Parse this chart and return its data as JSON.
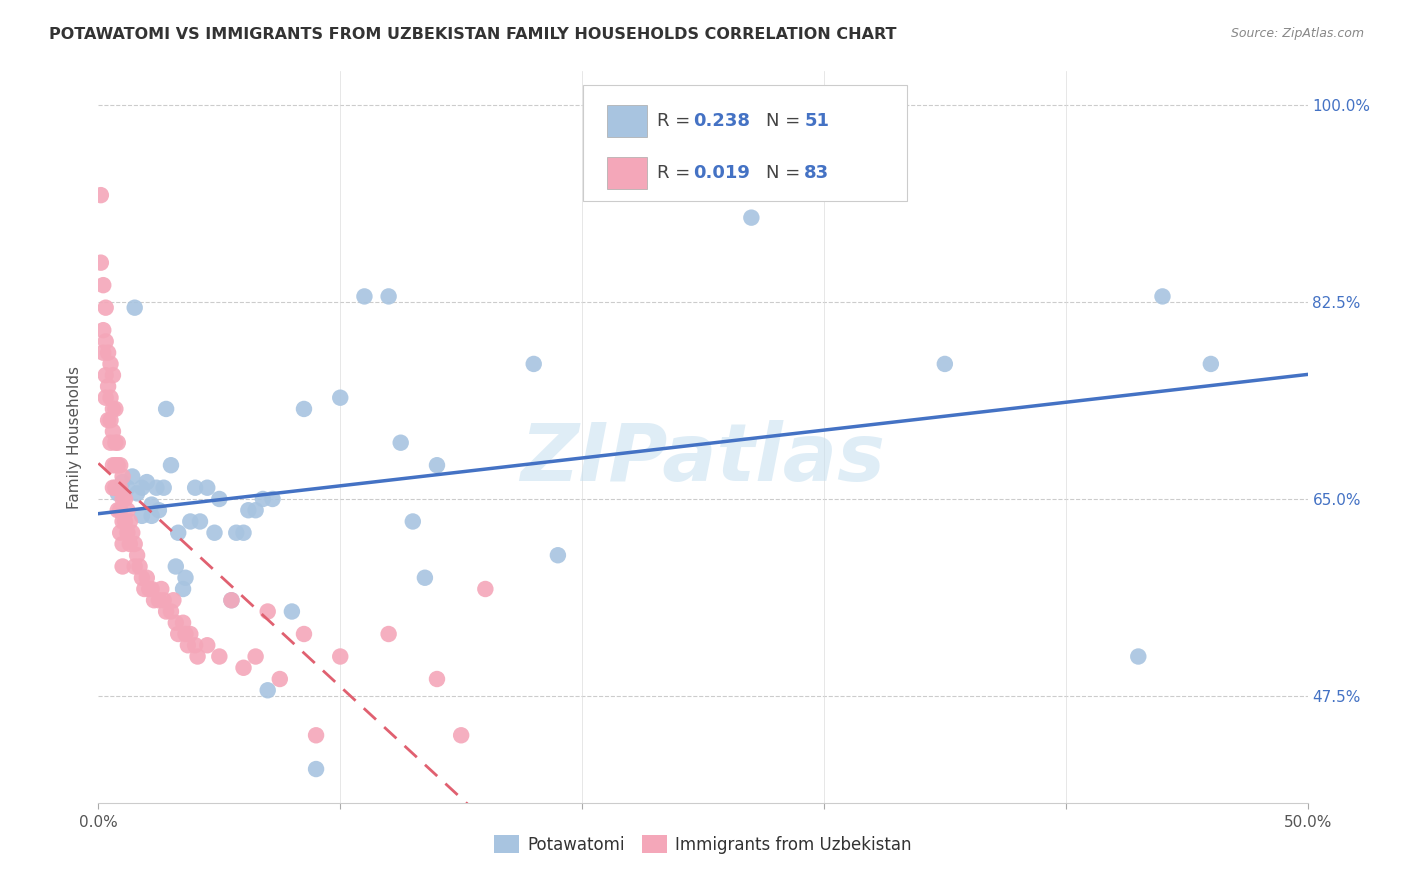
{
  "title": "POTAWATOMI VS IMMIGRANTS FROM UZBEKISTAN FAMILY HOUSEHOLDS CORRELATION CHART",
  "source": "Source: ZipAtlas.com",
  "ylabel": "Family Households",
  "xmin": 0.0,
  "xmax": 0.5,
  "ymin": 0.38,
  "ymax": 1.03,
  "ytick_vals": [
    0.475,
    0.65,
    0.825,
    1.0
  ],
  "ytick_labels": [
    "47.5%",
    "65.0%",
    "82.5%",
    "100.0%"
  ],
  "xtick_positions": [
    0.0,
    0.1,
    0.2,
    0.3,
    0.4,
    0.5
  ],
  "xtick_labels": [
    "0.0%",
    "",
    "",
    "",
    "",
    "50.0%"
  ],
  "color_blue": "#a8c4e0",
  "color_pink": "#f4a7b9",
  "color_blue_line": "#4472c4",
  "color_pink_line": "#e06070",
  "legend_R1": "0.238",
  "legend_N1": "51",
  "legend_R2": "0.019",
  "legend_N2": "83",
  "watermark": "ZIPatlas",
  "blue_x": [
    0.008,
    0.01,
    0.012,
    0.014,
    0.015,
    0.016,
    0.018,
    0.018,
    0.02,
    0.022,
    0.022,
    0.024,
    0.025,
    0.027,
    0.028,
    0.03,
    0.032,
    0.033,
    0.035,
    0.036,
    0.038,
    0.04,
    0.042,
    0.045,
    0.048,
    0.05,
    0.055,
    0.057,
    0.06,
    0.062,
    0.065,
    0.068,
    0.07,
    0.072,
    0.08,
    0.085,
    0.09,
    0.1,
    0.11,
    0.12,
    0.125,
    0.13,
    0.135,
    0.14,
    0.18,
    0.19,
    0.27,
    0.35,
    0.43,
    0.44,
    0.46
  ],
  "blue_y": [
    0.655,
    0.665,
    0.66,
    0.67,
    0.82,
    0.655,
    0.635,
    0.66,
    0.665,
    0.635,
    0.645,
    0.66,
    0.64,
    0.66,
    0.73,
    0.68,
    0.59,
    0.62,
    0.57,
    0.58,
    0.63,
    0.66,
    0.63,
    0.66,
    0.62,
    0.65,
    0.56,
    0.62,
    0.62,
    0.64,
    0.64,
    0.65,
    0.48,
    0.65,
    0.55,
    0.73,
    0.41,
    0.74,
    0.83,
    0.83,
    0.7,
    0.63,
    0.58,
    0.68,
    0.77,
    0.6,
    0.9,
    0.77,
    0.51,
    0.83,
    0.77
  ],
  "pink_x": [
    0.001,
    0.001,
    0.002,
    0.002,
    0.002,
    0.003,
    0.003,
    0.003,
    0.003,
    0.004,
    0.004,
    0.004,
    0.005,
    0.005,
    0.005,
    0.005,
    0.006,
    0.006,
    0.006,
    0.006,
    0.006,
    0.007,
    0.007,
    0.007,
    0.007,
    0.008,
    0.008,
    0.008,
    0.008,
    0.009,
    0.009,
    0.009,
    0.009,
    0.01,
    0.01,
    0.01,
    0.01,
    0.01,
    0.011,
    0.011,
    0.012,
    0.012,
    0.013,
    0.013,
    0.014,
    0.015,
    0.015,
    0.016,
    0.017,
    0.018,
    0.019,
    0.02,
    0.021,
    0.022,
    0.023,
    0.025,
    0.026,
    0.027,
    0.028,
    0.03,
    0.031,
    0.032,
    0.033,
    0.035,
    0.036,
    0.037,
    0.038,
    0.04,
    0.041,
    0.045,
    0.05,
    0.055,
    0.06,
    0.065,
    0.07,
    0.075,
    0.085,
    0.09,
    0.1,
    0.12,
    0.14,
    0.15,
    0.16
  ],
  "pink_y": [
    0.92,
    0.86,
    0.84,
    0.8,
    0.78,
    0.82,
    0.79,
    0.76,
    0.74,
    0.78,
    0.75,
    0.72,
    0.77,
    0.74,
    0.72,
    0.7,
    0.76,
    0.73,
    0.71,
    0.68,
    0.66,
    0.73,
    0.7,
    0.68,
    0.66,
    0.7,
    0.68,
    0.66,
    0.64,
    0.68,
    0.66,
    0.64,
    0.62,
    0.67,
    0.65,
    0.63,
    0.61,
    0.59,
    0.65,
    0.63,
    0.64,
    0.62,
    0.63,
    0.61,
    0.62,
    0.61,
    0.59,
    0.6,
    0.59,
    0.58,
    0.57,
    0.58,
    0.57,
    0.57,
    0.56,
    0.56,
    0.57,
    0.56,
    0.55,
    0.55,
    0.56,
    0.54,
    0.53,
    0.54,
    0.53,
    0.52,
    0.53,
    0.52,
    0.51,
    0.52,
    0.51,
    0.56,
    0.5,
    0.51,
    0.55,
    0.49,
    0.53,
    0.44,
    0.51,
    0.53,
    0.49,
    0.44,
    0.57
  ]
}
